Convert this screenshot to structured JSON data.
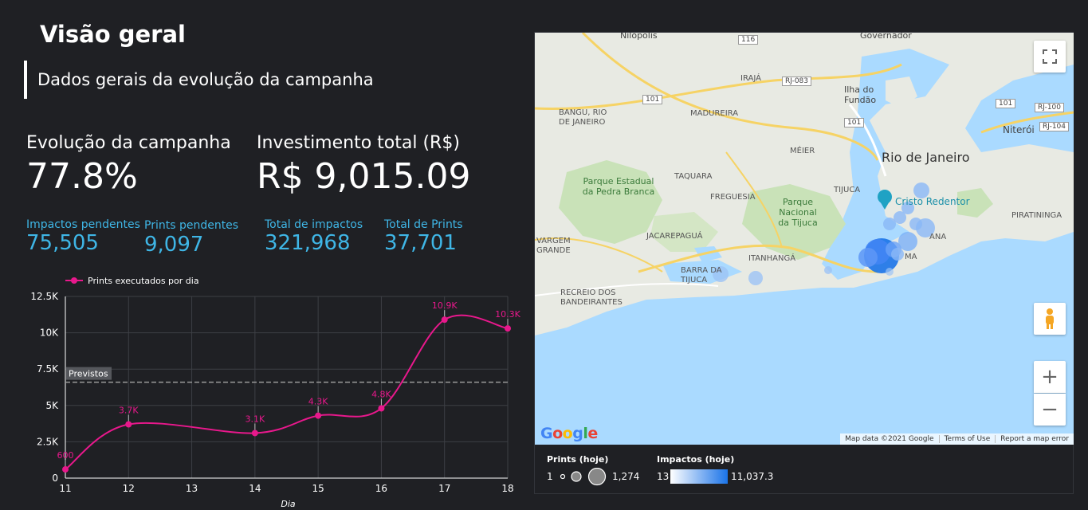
{
  "header": {
    "title": "Visão geral",
    "subtitle": "Dados gerais da evolução da campanha"
  },
  "kpis": {
    "evolucao": {
      "label": "Evolução da campanha",
      "value": "77.8%"
    },
    "investimento": {
      "label": "Investimento total (R$)",
      "value": "R$ 9,015.09"
    },
    "impactos_pendentes": {
      "label": "Impactos pendentes",
      "value": "75,505"
    },
    "prints_pendentes": {
      "label": "Prints pendentes",
      "value": "9,097"
    },
    "total_impactos": {
      "label": "Total de impactos",
      "value": "321,968"
    },
    "total_prints": {
      "label": "Total de Prints",
      "value": "37,701"
    }
  },
  "chart_data": {
    "type": "line",
    "title": "",
    "xlabel": "Dia",
    "ylabel": "",
    "categories": [
      "11",
      "12",
      "13",
      "14",
      "15",
      "16",
      "17",
      "18"
    ],
    "series": [
      {
        "name": "Prints executados por dia",
        "x": [
          11,
          12,
          14,
          15,
          16,
          17,
          18
        ],
        "values": [
          600,
          3700,
          3100,
          4300,
          4800,
          10900,
          10300
        ],
        "labels": [
          "600",
          "3.7K",
          "3.1K",
          "4.3K",
          "4.8K",
          "10.9K",
          "10.3K"
        ],
        "color": "#e8188c"
      }
    ],
    "reference_line": {
      "label": "Previstos",
      "value": 6600
    },
    "ylim": [
      0,
      12500
    ],
    "yticks": [
      0,
      2500,
      5000,
      7500,
      10000,
      12500
    ],
    "ytick_labels": [
      "0",
      "2.5K",
      "5K",
      "7.5K",
      "10K",
      "12.5K"
    ],
    "grid": true,
    "legend": "top-left"
  },
  "map": {
    "places": {
      "rio": "Rio de Janeiro",
      "niteroi": "Niterói",
      "cristo": "Cristo Redentor",
      "tijuca": "Parque Nacional da Tijuca",
      "pedra_branca": "Parque Estadual da Pedra Branca",
      "taquara": "TAQUARA",
      "freguesia": "FREGUESIA",
      "jacarepagua": "JACAREPAGUÁ",
      "itanhanga": "ITANHANGÁ",
      "barra": "BARRA DA TIJUCA",
      "recreio": "RECREIO DOS BANDEIRANTES",
      "vargem": "VARGEM GRANDE",
      "bangu": "BANGU, RIO DE JANEIRO",
      "madureira": "MADUREIRA",
      "iraja": "IRAJÁ",
      "meier": "MÉIER",
      "tijuca_bairro": "TIJUCA",
      "ilha": "Ilha do Fundão",
      "piratininga": "PIRATININGA",
      "nilopolis": "Nilópolis",
      "governador": "Governador",
      "copa": "ANA",
      "ipanema": "MA"
    },
    "roads": [
      "116",
      "101",
      "101",
      "101",
      "RJ-083",
      "RJ-100",
      "RJ-104"
    ],
    "footer": {
      "data": "Map data ©2021 Google",
      "terms": "Terms of Use",
      "report": "Report a map error"
    },
    "logo": "Google",
    "zoom_in": "+",
    "zoom_out": "−"
  },
  "legend": {
    "prints": {
      "title": "Prints (hoje)",
      "min": "1",
      "max": "1,274"
    },
    "impactos": {
      "title": "Impactos (hoje)",
      "min": "13",
      "max": "11,037.3"
    }
  }
}
